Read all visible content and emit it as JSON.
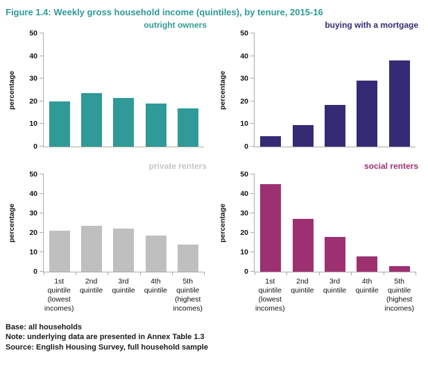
{
  "title": "Figure 1.4: Weekly gross household income (quintiles), by tenure, 2015-16",
  "title_color": "#2F9A98",
  "footer": {
    "base": "Base: all households",
    "note": "Note: underlying data are presented in Annex Table 1.3",
    "source": "Source: English Housing Survey, full household sample"
  },
  "chart_data": [
    {
      "type": "bar",
      "title": "outright owners",
      "title_color": "#2F9A98",
      "color": "#2F9A98",
      "ylabel": "percentage",
      "ylim": [
        0,
        50
      ],
      "yticks": [
        0,
        10,
        20,
        30,
        40,
        50
      ],
      "grid": false,
      "legend": "none",
      "categories": [
        "1st\nquintile\n(lowest\nincomes)",
        "2nd\nquintile",
        "3rd\nquintile",
        "4th\nquintile",
        "5th\nquintile\n(highest\nincomes)"
      ],
      "show_x_labels": false,
      "values": [
        20,
        23.5,
        21.5,
        19,
        17
      ]
    },
    {
      "type": "bar",
      "title": "buying with a mortgage",
      "title_color": "#342B74",
      "color": "#342B74",
      "ylabel": "percentage",
      "ylim": [
        0,
        50
      ],
      "yticks": [
        0,
        10,
        20,
        30,
        40,
        50
      ],
      "grid": false,
      "legend": "none",
      "categories": [
        "1st\nquintile\n(lowest\nincomes)",
        "2nd\nquintile",
        "3rd\nquintile",
        "4th\nquintile",
        "5th\nquintile\n(highest\nincomes)"
      ],
      "show_x_labels": false,
      "values": [
        4.5,
        9.5,
        18.5,
        29,
        38
      ]
    },
    {
      "type": "bar",
      "title": "private renters",
      "title_color": "#C6C6C6",
      "color": "#BFBFBF",
      "ylabel": "percentage",
      "ylim": [
        0,
        50
      ],
      "yticks": [
        0,
        10,
        20,
        30,
        40,
        50
      ],
      "grid": false,
      "legend": "none",
      "categories": [
        "1st\nquintile\n(lowest\nincomes)",
        "2nd\nquintile",
        "3rd\nquintile",
        "4th\nquintile",
        "5th\nquintile\n(highest\nincomes)"
      ],
      "show_x_labels": true,
      "values": [
        21,
        23.5,
        22,
        18.5,
        14
      ]
    },
    {
      "type": "bar",
      "title": "social renters",
      "title_color": "#9D3071",
      "color": "#9D3071",
      "ylabel": "percentage",
      "ylim": [
        0,
        50
      ],
      "yticks": [
        0,
        10,
        20,
        30,
        40,
        50
      ],
      "grid": false,
      "legend": "none",
      "categories": [
        "1st\nquintile\n(lowest\nincomes)",
        "2nd\nquintile",
        "3rd\nquintile",
        "4th\nquintile",
        "5th\nquintile\n(highest\nincomes)"
      ],
      "show_x_labels": true,
      "values": [
        45,
        27,
        18,
        8,
        3
      ]
    }
  ]
}
